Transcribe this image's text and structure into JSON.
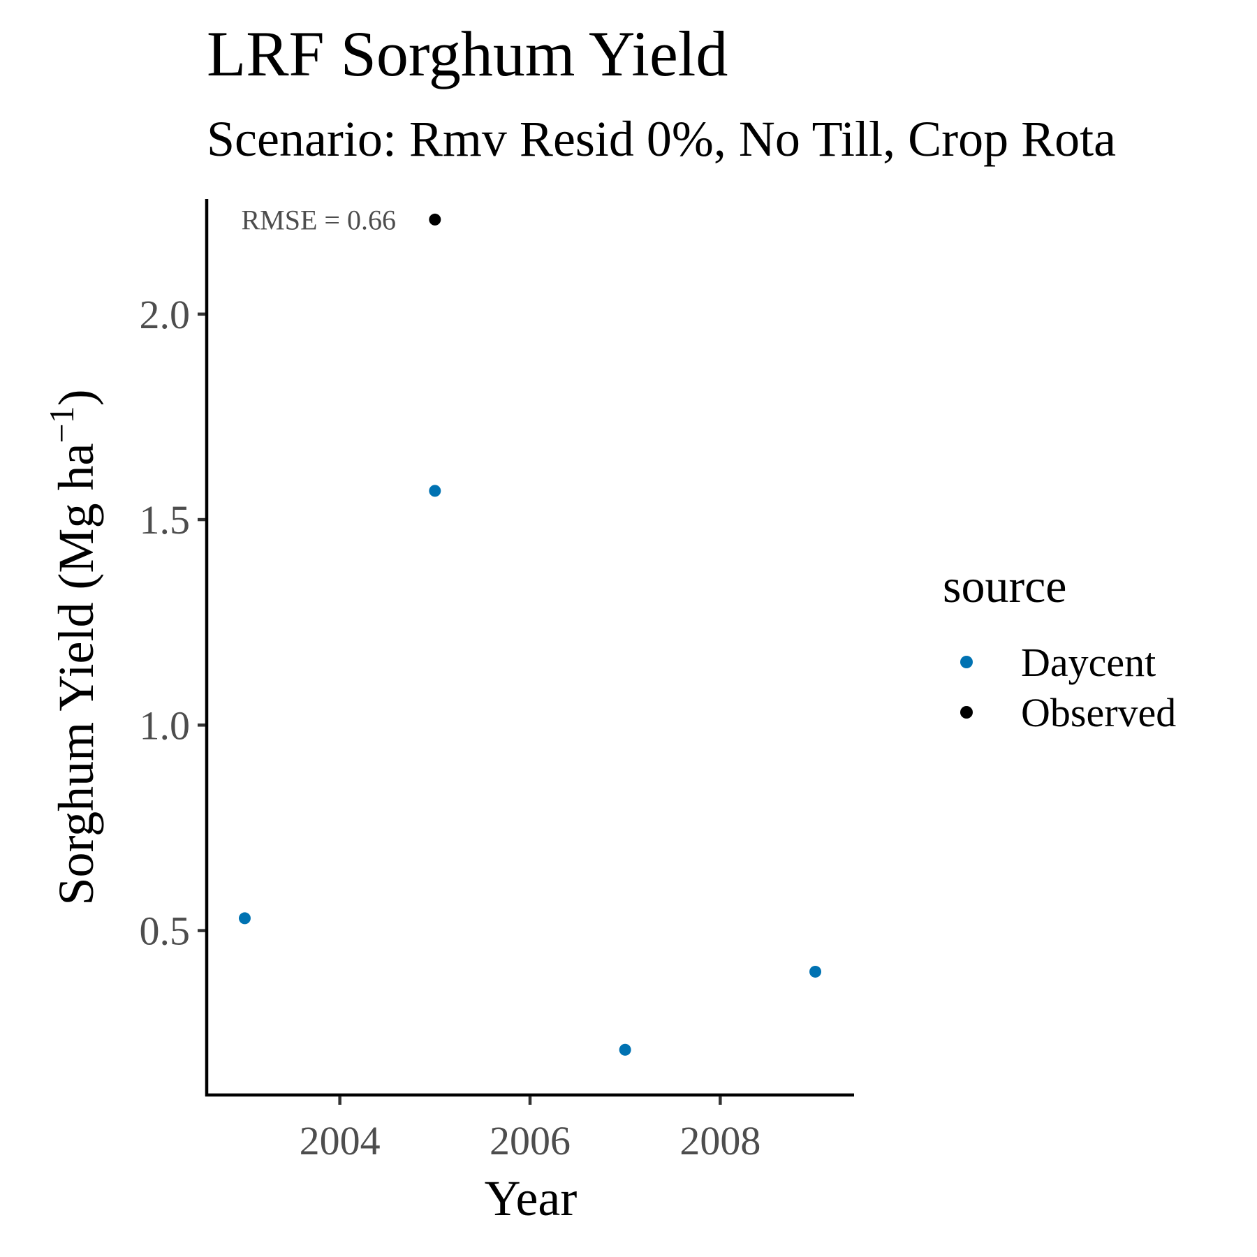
{
  "chart_data": {
    "type": "scatter",
    "title": "LRF Sorghum Yield",
    "subtitle": "Scenario: Rmv Resid 0%, No Till, Crop Rota",
    "xlabel": "Year",
    "ylabel_main": "Sorghum Yield (Mg ha",
    "ylabel_sup": "−1",
    "ylabel_close": ")",
    "xlim": [
      2002.6,
      2009.4
    ],
    "ylim": [
      0.1,
      2.28
    ],
    "x_ticks": [
      2004,
      2006,
      2008
    ],
    "x_tick_labels": [
      "2004",
      "2006",
      "2008"
    ],
    "y_ticks": [
      0.5,
      1.0,
      1.5,
      2.0
    ],
    "y_tick_labels": [
      "0.5",
      "1.0",
      "1.5",
      "2.0"
    ],
    "grid": false,
    "legend_position": "right",
    "legend": {
      "title": "source",
      "items": [
        {
          "label": "Daycent",
          "color": "#0072B2"
        },
        {
          "label": "Observed",
          "color": "#000000"
        }
      ]
    },
    "annotation": {
      "text": "RMSE = 0.66",
      "x": 2003.0,
      "y": 2.23
    },
    "series": [
      {
        "name": "Daycent",
        "color": "#0072B2",
        "points": [
          {
            "x": 2003,
            "y": 0.53
          },
          {
            "x": 2005,
            "y": 1.57
          },
          {
            "x": 2007,
            "y": 0.21
          },
          {
            "x": 2009,
            "y": 0.4
          }
        ]
      },
      {
        "name": "Observed",
        "color": "#000000",
        "points": [
          {
            "x": 2005,
            "y": 2.23
          }
        ]
      }
    ]
  }
}
